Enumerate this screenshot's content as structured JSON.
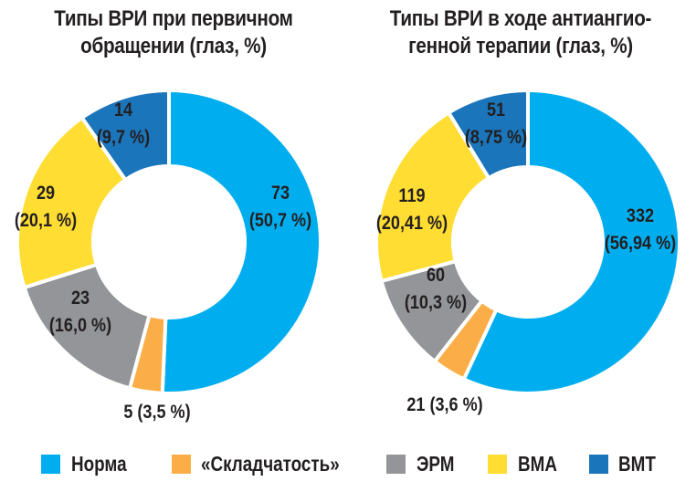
{
  "chart_data": [
    {
      "type": "pie",
      "variant": "donut",
      "title": "Типы ВРИ при первичном обращении (глаз, %)",
      "title_lines": [
        "Типы ВРИ при первичном",
        "обращении (глаз, %)"
      ],
      "categories": [
        "Норма",
        "«Складчатость»",
        "ЭРМ",
        "ВМА",
        "ВМТ"
      ],
      "values": [
        73,
        5,
        23,
        29,
        14
      ],
      "percent": [
        50.7,
        3.5,
        16.0,
        20.1,
        9.7
      ],
      "labels": [
        {
          "value": "73",
          "percent": "(50,7 %)"
        },
        {
          "value": "5 (3,5 %)",
          "percent": ""
        },
        {
          "value": "23",
          "percent": "(16,0 %)"
        },
        {
          "value": "29",
          "percent": "(20,1 %)"
        },
        {
          "value": "14",
          "percent": "(9,7 %)"
        }
      ],
      "start": "top",
      "direction": "clockwise"
    },
    {
      "type": "pie",
      "variant": "donut",
      "title": "Типы ВРИ в ходе антиангиогенной терапии (глаз, %)",
      "title_lines": [
        "Типы ВРИ в ходе антиангио-",
        "генной терапии (глаз, %)"
      ],
      "categories": [
        "Норма",
        "«Складчатость»",
        "ЭРМ",
        "ВМА",
        "ВМТ"
      ],
      "values": [
        332,
        21,
        60,
        119,
        51
      ],
      "percent": [
        56.94,
        3.6,
        10.3,
        20.41,
        8.75
      ],
      "labels": [
        {
          "value": "332",
          "percent": "(56,94 %)"
        },
        {
          "value": "21 (3,6 %)",
          "percent": ""
        },
        {
          "value": "60",
          "percent": "(10,3 %)"
        },
        {
          "value": "119",
          "percent": "(20,41 %)"
        },
        {
          "value": "51",
          "percent": "(8,75 %)"
        }
      ],
      "start": "top",
      "direction": "clockwise"
    }
  ],
  "legend": {
    "placement": "bottom",
    "items": [
      {
        "label": "Норма",
        "color": "#00aeef"
      },
      {
        "label": "«Складчатость»",
        "color": "#fbae48"
      },
      {
        "label": "ЭРМ",
        "color": "#939598"
      },
      {
        "label": "ВМА",
        "color": "#ffdd33"
      },
      {
        "label": "ВМТ",
        "color": "#1b75bb"
      }
    ]
  }
}
